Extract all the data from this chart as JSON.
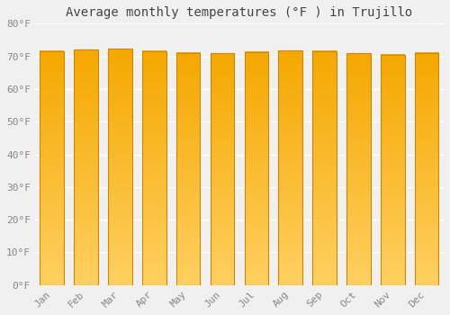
{
  "title": "Average monthly temperatures (°F ) in Trujillo",
  "months": [
    "Jan",
    "Feb",
    "Mar",
    "Apr",
    "May",
    "Jun",
    "Jul",
    "Aug",
    "Sep",
    "Oct",
    "Nov",
    "Dec"
  ],
  "values": [
    71.6,
    72.0,
    72.3,
    71.6,
    71.1,
    70.9,
    71.4,
    71.8,
    71.6,
    70.9,
    70.5,
    71.1
  ],
  "bar_color_bottom": "#FFD060",
  "bar_color_top": "#F5A800",
  "bar_edge_color": "#CC8800",
  "ylim": [
    0,
    80
  ],
  "yticks": [
    0,
    10,
    20,
    30,
    40,
    50,
    60,
    70,
    80
  ],
  "ytick_labels": [
    "0°F",
    "10°F",
    "20°F",
    "30°F",
    "40°F",
    "50°F",
    "60°F",
    "70°F",
    "80°F"
  ],
  "bg_color": "#f0f0f0",
  "grid_color": "#ffffff",
  "title_fontsize": 10,
  "tick_fontsize": 8,
  "font_family": "monospace",
  "bar_width": 0.7,
  "gradient_steps": 100
}
